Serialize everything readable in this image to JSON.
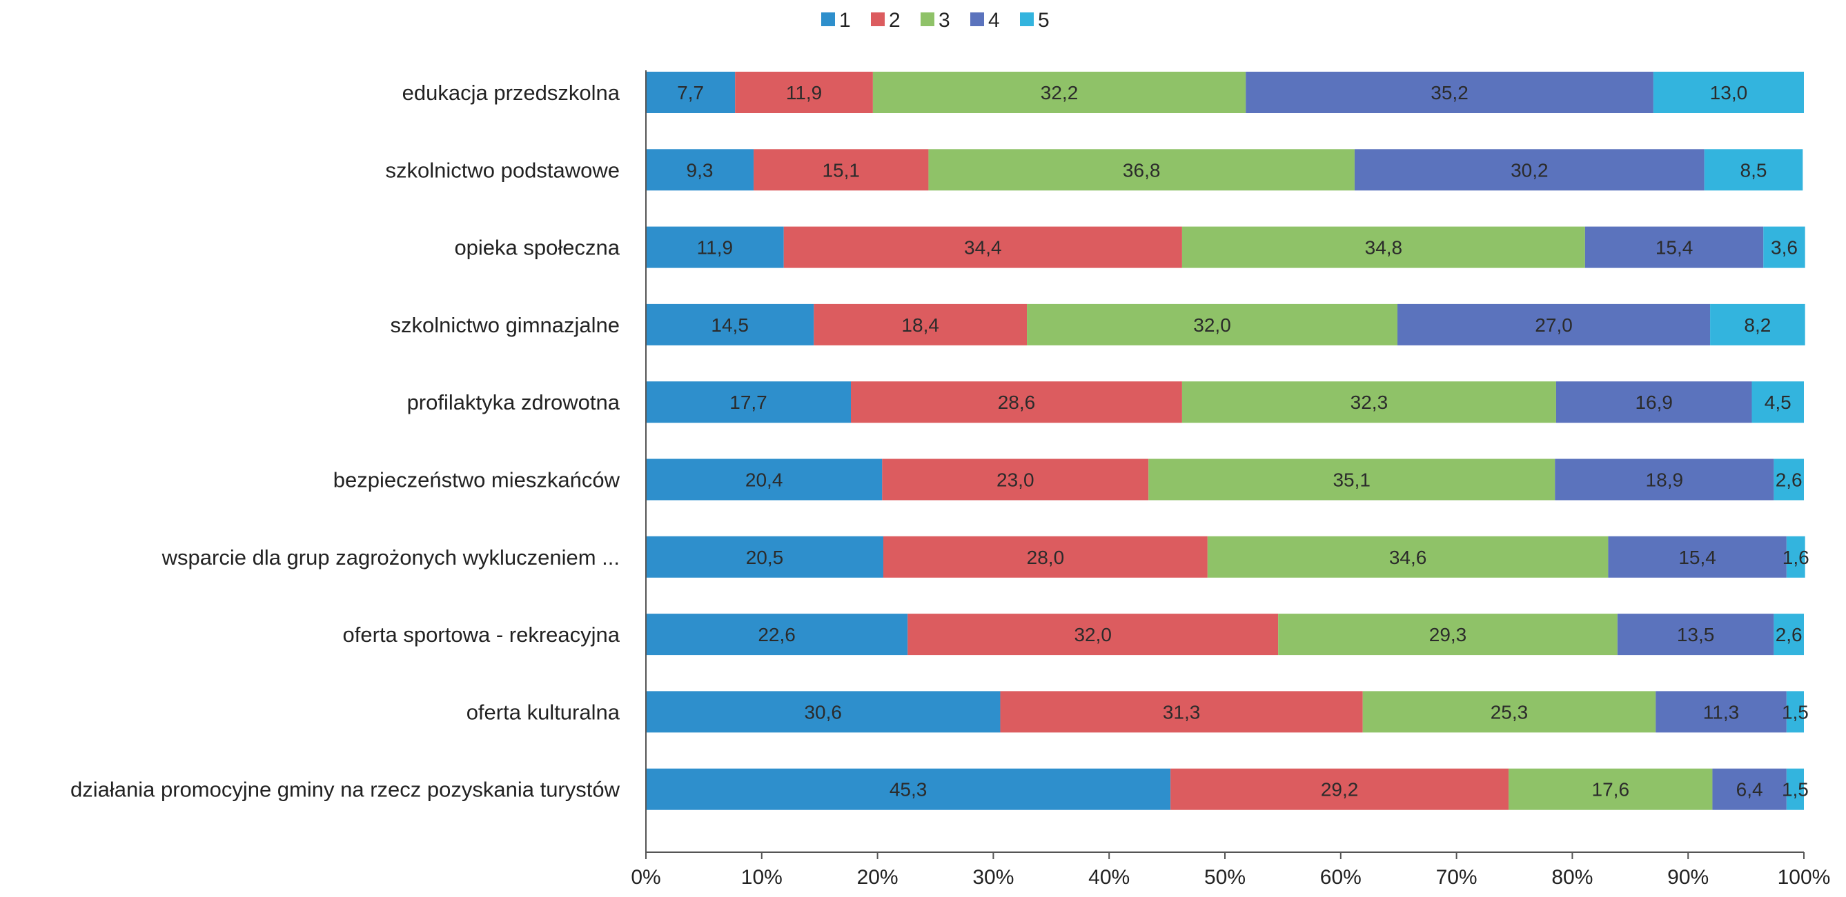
{
  "chart_data": {
    "type": "bar",
    "orientation": "horizontal",
    "stacked": true,
    "percent": true,
    "categories": [
      "edukacja przedszkolna",
      "szkolnictwo podstawowe",
      "opieka społeczna",
      "szkolnictwo gimnazjalne",
      "profilaktyka zdrowotna",
      "bezpieczeństwo mieszkańców",
      "wsparcie dla grup zagrożonych wykluczeniem ...",
      "oferta sportowa - rekreacyjna",
      "oferta kulturalna",
      "działania promocyjne gminy na rzecz pozyskania turystów"
    ],
    "series": [
      {
        "name": "1",
        "color": "#2e8fcc",
        "values": [
          7.7,
          9.3,
          11.9,
          14.5,
          17.7,
          20.4,
          20.5,
          22.6,
          30.6,
          45.3
        ]
      },
      {
        "name": "2",
        "color": "#dc5c5f",
        "values": [
          11.9,
          15.1,
          34.4,
          18.4,
          28.6,
          23.0,
          28.0,
          32.0,
          31.3,
          29.2
        ]
      },
      {
        "name": "3",
        "color": "#8fc268",
        "values": [
          32.2,
          36.8,
          34.8,
          32.0,
          32.3,
          35.1,
          34.6,
          29.3,
          25.3,
          17.6
        ]
      },
      {
        "name": "4",
        "color": "#5b73bd",
        "values": [
          35.2,
          30.2,
          15.4,
          27.0,
          16.9,
          18.9,
          15.4,
          13.5,
          11.3,
          6.4
        ]
      },
      {
        "name": "5",
        "color": "#33b4de",
        "values": [
          13.0,
          8.5,
          3.6,
          8.2,
          4.5,
          2.6,
          1.6,
          2.6,
          1.5,
          1.5
        ]
      }
    ],
    "value_labels": [
      [
        "7,7",
        "11,9",
        "32,2",
        "35,2",
        "13,0"
      ],
      [
        "9,3",
        "15,1",
        "36,8",
        "30,2",
        "8,5"
      ],
      [
        "11,9",
        "34,4",
        "34,8",
        "15,4",
        "3,6"
      ],
      [
        "14,5",
        "18,4",
        "32,0",
        "27,0",
        "8,2"
      ],
      [
        "17,7",
        "28,6",
        "32,3",
        "16,9",
        "4,5"
      ],
      [
        "20,4",
        "23,0",
        "35,1",
        "18,9",
        "2,6"
      ],
      [
        "20,5",
        "28,0",
        "34,6",
        "15,4",
        "1,6"
      ],
      [
        "22,6",
        "32,0",
        "29,3",
        "13,5",
        "2,6"
      ],
      [
        "30,6",
        "31,3",
        "25,3",
        "11,3",
        "1,5"
      ],
      [
        "45,3",
        "29,2",
        "17,6",
        "6,4",
        "1,5"
      ]
    ],
    "x_ticks": [
      "0%",
      "10%",
      "20%",
      "30%",
      "40%",
      "50%",
      "60%",
      "70%",
      "80%",
      "90%",
      "100%"
    ],
    "xlim": [
      0,
      100
    ],
    "title": "",
    "xlabel": "",
    "ylabel": "",
    "grid": false,
    "legend_position": "top-center"
  }
}
